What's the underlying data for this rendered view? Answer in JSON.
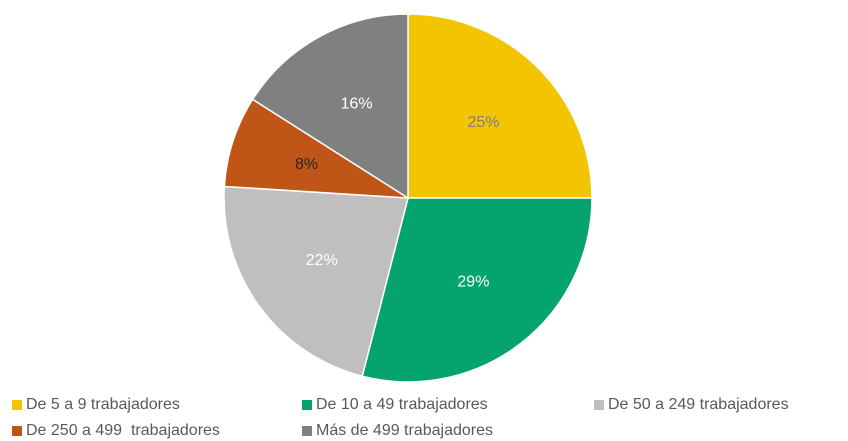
{
  "chart_data": {
    "type": "pie",
    "categories": [
      "De 5 a 9 trabajadores",
      "De 10 a 49 trabajadores",
      "De 50 a 249 trabajadores",
      "De 250 a 499  trabajadores",
      "Más de 499 trabajadores"
    ],
    "values": [
      25,
      29,
      22,
      8,
      16
    ],
    "value_labels": [
      "25%",
      "29%",
      "22%",
      "8%",
      "16%"
    ],
    "colors": [
      "#f2c500",
      "#05a36e",
      "#bfbfbf",
      "#c05518",
      "#808080"
    ],
    "label_colors": [
      "#7f7f7f",
      "#ffffff",
      "#ffffff",
      "#262626",
      "#ffffff"
    ],
    "legend": "bottom"
  }
}
